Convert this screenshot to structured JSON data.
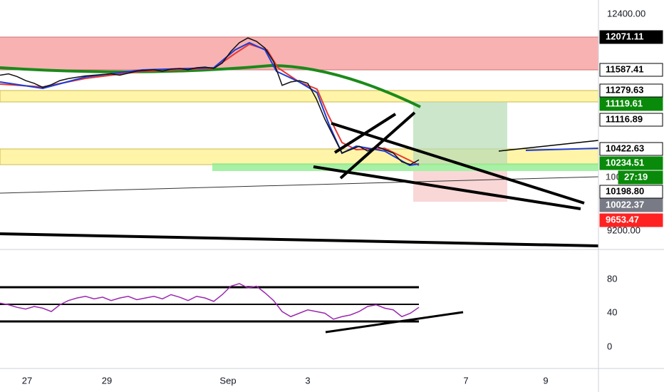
{
  "price_axis": {
    "labels": [
      "12400.00",
      "9200.00"
    ]
  },
  "price_tags": [
    "12071.11",
    "11587.41",
    "11279.63",
    "11119.61",
    "11116.89",
    "10422.63",
    "10234.51",
    "100",
    "27:19",
    "10198.80",
    "10022.37",
    "9653.47"
  ],
  "rsi_axis": {
    "labels": [
      "80",
      "40",
      "0"
    ]
  },
  "time_axis": {
    "labels": [
      "27",
      "29",
      "Sep",
      "3",
      "7",
      "9"
    ]
  },
  "price": {
    "values": [
      11500,
      11520,
      11480,
      11420,
      11380,
      11320,
      11360,
      11420,
      11450,
      11470,
      11490,
      11500,
      11510,
      11520,
      11500,
      11530,
      11560,
      11570,
      11580,
      11560,
      11590,
      11600,
      11580,
      11610,
      11620,
      11600,
      11680,
      11850,
      11980,
      12050,
      12000,
      11900,
      11700,
      11350,
      11400,
      11420,
      11380,
      11150,
      10850,
      10600,
      10350,
      10400,
      10450,
      10380,
      10450,
      10400,
      10350,
      10220,
      10180,
      10250
    ]
  },
  "rsi": {
    "values": [
      52,
      50,
      47,
      45,
      48,
      46,
      42,
      50,
      55,
      58,
      60,
      57,
      59,
      55,
      58,
      60,
      56,
      58,
      60,
      57,
      62,
      59,
      55,
      60,
      58,
      54,
      62,
      72,
      75,
      70,
      72,
      64,
      55,
      42,
      36,
      40,
      44,
      42,
      40,
      33,
      36,
      38,
      42,
      48,
      50,
      46,
      44,
      36,
      40,
      47
    ]
  }
}
